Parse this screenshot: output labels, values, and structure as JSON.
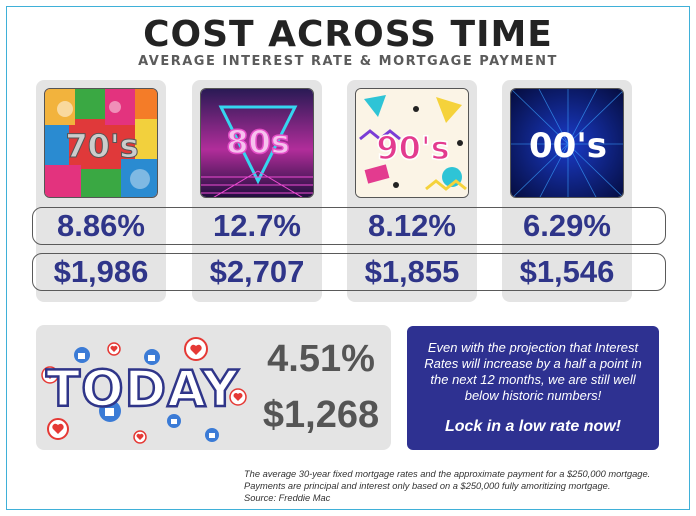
{
  "header": {
    "title": "COST ACROSS TIME",
    "subtitle": "AVERAGE INTEREST RATE & MORTGAGE PAYMENT"
  },
  "decades": [
    {
      "image_text": "70's",
      "rate": "8.86%",
      "payment": "$1,986"
    },
    {
      "image_text": "80s",
      "rate": "12.7%",
      "payment": "$2,707"
    },
    {
      "image_text": "90's",
      "rate": "8.12%",
      "payment": "$1,855"
    },
    {
      "image_text": "00's",
      "rate": "6.29%",
      "payment": "$1,546"
    }
  ],
  "today": {
    "label": "TODAY",
    "rate": "4.51%",
    "payment": "$1,268"
  },
  "message": {
    "body": "Even with the projection that Interest Rates will increase by a half a point in the next 12 months, we are still well below historic numbers!",
    "cta": "Lock in a low rate now!"
  },
  "footnote": {
    "line1": "The average 30-year fixed mortgage rates and the approximate payment for a $250,000 mortgage.",
    "line2": "Payments are principal and interest only based on a $250,000 fully amoritizing mortgage.",
    "line3": "Source: Freddie Mac"
  },
  "colors": {
    "accent_blue": "#2f3589",
    "panel_grey": "#e4e4e4",
    "message_bg": "#2e3191",
    "heart_red": "#e53935",
    "like_blue": "#3b7bd6"
  }
}
